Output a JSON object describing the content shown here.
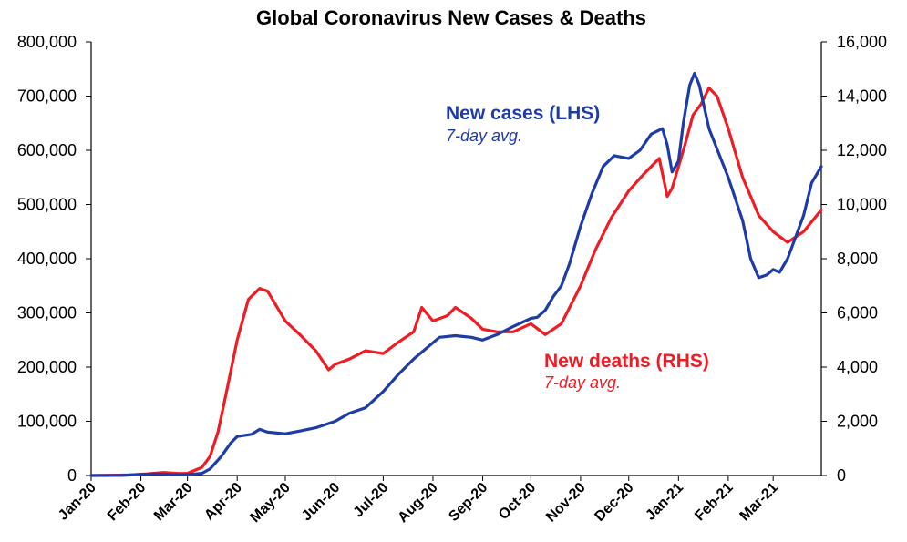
{
  "chart_data": {
    "type": "line",
    "title": "Global Coronavirus New Cases & Deaths",
    "x_categories": [
      "Jan-20",
      "Feb-20",
      "Mar-20",
      "Apr-20",
      "May-20",
      "Jun-20",
      "Jul-20",
      "Aug-20",
      "Sep-20",
      "Oct-20",
      "Nov-20",
      "Dec-20",
      "Jan-21",
      "Feb-21",
      "Mar-21"
    ],
    "x_range": [
      "2020-01-01",
      "2021-03-31"
    ],
    "y_left": {
      "range": [
        0,
        800000
      ],
      "ticks": [
        "0",
        "100,000",
        "200,000",
        "300,000",
        "400,000",
        "500,000",
        "600,000",
        "700,000",
        "800,000"
      ]
    },
    "y_right": {
      "range": [
        0,
        16000
      ],
      "ticks": [
        "0",
        "2,000",
        "4,000",
        "6,000",
        "8,000",
        "10,000",
        "12,000",
        "14,000",
        "16,000"
      ]
    },
    "grid": false,
    "series": [
      {
        "name": "New cases (LHS)",
        "subtitle": "7-day avg.",
        "axis": "left",
        "color": "#1f3ca6",
        "points": [
          [
            "2020-01-01",
            0
          ],
          [
            "2020-01-20",
            100
          ],
          [
            "2020-02-01",
            2000
          ],
          [
            "2020-02-10",
            3000
          ],
          [
            "2020-02-20",
            1500
          ],
          [
            "2020-03-01",
            1500
          ],
          [
            "2020-03-10",
            4000
          ],
          [
            "2020-03-15",
            12000
          ],
          [
            "2020-03-22",
            35000
          ],
          [
            "2020-03-28",
            60000
          ],
          [
            "2020-04-01",
            72000
          ],
          [
            "2020-04-10",
            76000
          ],
          [
            "2020-04-15",
            85000
          ],
          [
            "2020-04-20",
            80000
          ],
          [
            "2020-05-01",
            77000
          ],
          [
            "2020-05-10",
            82000
          ],
          [
            "2020-05-20",
            88000
          ],
          [
            "2020-06-01",
            100000
          ],
          [
            "2020-06-10",
            115000
          ],
          [
            "2020-06-20",
            125000
          ],
          [
            "2020-07-01",
            155000
          ],
          [
            "2020-07-10",
            185000
          ],
          [
            "2020-07-20",
            215000
          ],
          [
            "2020-08-01",
            245000
          ],
          [
            "2020-08-05",
            255000
          ],
          [
            "2020-08-15",
            258000
          ],
          [
            "2020-08-25",
            255000
          ],
          [
            "2020-09-01",
            250000
          ],
          [
            "2020-09-10",
            260000
          ],
          [
            "2020-09-20",
            275000
          ],
          [
            "2020-10-01",
            290000
          ],
          [
            "2020-10-05",
            292000
          ],
          [
            "2020-10-10",
            305000
          ],
          [
            "2020-10-15",
            330000
          ],
          [
            "2020-10-20",
            350000
          ],
          [
            "2020-10-25",
            390000
          ],
          [
            "2020-11-01",
            460000
          ],
          [
            "2020-11-08",
            520000
          ],
          [
            "2020-11-15",
            570000
          ],
          [
            "2020-11-22",
            590000
          ],
          [
            "2020-12-01",
            585000
          ],
          [
            "2020-12-08",
            600000
          ],
          [
            "2020-12-15",
            630000
          ],
          [
            "2020-12-22",
            640000
          ],
          [
            "2020-12-25",
            610000
          ],
          [
            "2020-12-28",
            560000
          ],
          [
            "2021-01-01",
            580000
          ],
          [
            "2021-01-04",
            650000
          ],
          [
            "2021-01-08",
            720000
          ],
          [
            "2021-01-11",
            742000
          ],
          [
            "2021-01-14",
            720000
          ],
          [
            "2021-01-20",
            640000
          ],
          [
            "2021-02-01",
            550000
          ],
          [
            "2021-02-10",
            470000
          ],
          [
            "2021-02-15",
            400000
          ],
          [
            "2021-02-20",
            365000
          ],
          [
            "2021-02-25",
            370000
          ],
          [
            "2021-03-01",
            380000
          ],
          [
            "2021-03-05",
            375000
          ],
          [
            "2021-03-10",
            400000
          ],
          [
            "2021-03-15",
            440000
          ],
          [
            "2021-03-20",
            480000
          ],
          [
            "2021-03-25",
            540000
          ],
          [
            "2021-03-31",
            570000
          ]
        ]
      },
      {
        "name": "New deaths (RHS)",
        "subtitle": "7-day avg.",
        "axis": "right",
        "color": "#ee1c25",
        "points": [
          [
            "2020-01-01",
            0
          ],
          [
            "2020-01-25",
            20
          ],
          [
            "2020-02-05",
            60
          ],
          [
            "2020-02-15",
            110
          ],
          [
            "2020-02-25",
            70
          ],
          [
            "2020-03-01",
            80
          ],
          [
            "2020-03-10",
            300
          ],
          [
            "2020-03-15",
            700
          ],
          [
            "2020-03-20",
            1600
          ],
          [
            "2020-03-25",
            3000
          ],
          [
            "2020-04-01",
            5000
          ],
          [
            "2020-04-08",
            6500
          ],
          [
            "2020-04-15",
            6900
          ],
          [
            "2020-04-20",
            6800
          ],
          [
            "2020-05-01",
            5700
          ],
          [
            "2020-05-10",
            5200
          ],
          [
            "2020-05-20",
            4600
          ],
          [
            "2020-05-28",
            3900
          ],
          [
            "2020-06-01",
            4100
          ],
          [
            "2020-06-10",
            4300
          ],
          [
            "2020-06-20",
            4600
          ],
          [
            "2020-07-01",
            4500
          ],
          [
            "2020-07-10",
            4900
          ],
          [
            "2020-07-20",
            5300
          ],
          [
            "2020-07-25",
            6200
          ],
          [
            "2020-08-01",
            5700
          ],
          [
            "2020-08-10",
            5900
          ],
          [
            "2020-08-15",
            6200
          ],
          [
            "2020-08-25",
            5800
          ],
          [
            "2020-09-01",
            5400
          ],
          [
            "2020-09-10",
            5300
          ],
          [
            "2020-09-20",
            5300
          ],
          [
            "2020-10-01",
            5600
          ],
          [
            "2020-10-10",
            5200
          ],
          [
            "2020-10-20",
            5600
          ],
          [
            "2020-11-01",
            7000
          ],
          [
            "2020-11-10",
            8300
          ],
          [
            "2020-11-20",
            9500
          ],
          [
            "2020-12-01",
            10500
          ],
          [
            "2020-12-10",
            11100
          ],
          [
            "2020-12-20",
            11700
          ],
          [
            "2020-12-25",
            10300
          ],
          [
            "2020-12-28",
            10600
          ],
          [
            "2021-01-05",
            12200
          ],
          [
            "2021-01-10",
            13300
          ],
          [
            "2021-01-15",
            13700
          ],
          [
            "2021-01-20",
            14300
          ],
          [
            "2021-01-25",
            14000
          ],
          [
            "2021-02-01",
            12800
          ],
          [
            "2021-02-10",
            11000
          ],
          [
            "2021-02-20",
            9600
          ],
          [
            "2021-03-01",
            9000
          ],
          [
            "2021-03-10",
            8600
          ],
          [
            "2021-03-20",
            9000
          ],
          [
            "2021-03-31",
            9800
          ]
        ]
      }
    ]
  },
  "labels": {
    "cases_name": "New cases (LHS)",
    "cases_sub": "7-day avg.",
    "deaths_name": "New deaths (RHS)",
    "deaths_sub": "7-day avg."
  }
}
